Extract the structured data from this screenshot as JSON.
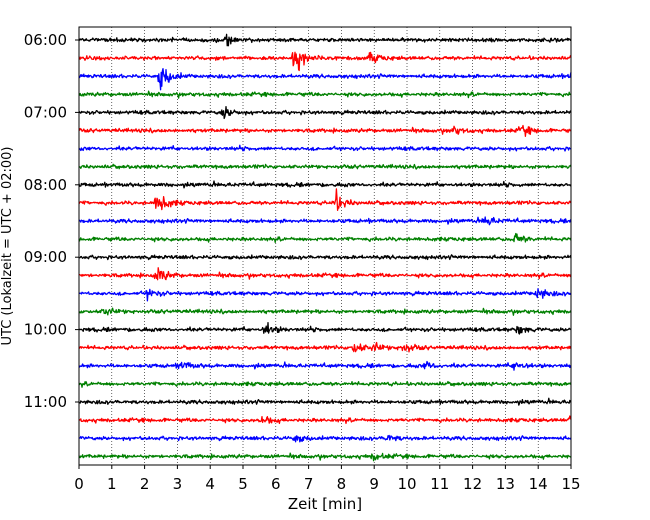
{
  "chart_data": {
    "type": "line",
    "subtype": "helicorder-seismogram",
    "title": "",
    "xlabel": "Zeit  [min]",
    "ylabel": "UTC (Lokalzeit = UTC + 02:00)",
    "xlim": [
      0,
      15
    ],
    "x_ticks": [
      "0",
      "1",
      "2",
      "3",
      "4",
      "5",
      "6",
      "7",
      "8",
      "9",
      "10",
      "11",
      "12",
      "13",
      "14",
      "15"
    ],
    "y_tick_labels": [
      "06:00",
      "07:00",
      "08:00",
      "09:00",
      "10:00",
      "11:00"
    ],
    "grid": "vertical dotted at each minute",
    "trace_colors": [
      "#000000",
      "#ff0000",
      "#0000ff",
      "#008000"
    ],
    "traces": [
      {
        "start": "06:00",
        "color": "#000000",
        "events": [
          {
            "t": 4.5,
            "amp": 0.35
          }
        ]
      },
      {
        "start": "06:15",
        "color": "#ff0000",
        "events": [
          {
            "t": 6.6,
            "amp": 0.9
          },
          {
            "t": 8.9,
            "amp": 0.3
          }
        ]
      },
      {
        "start": "06:30",
        "color": "#0000ff",
        "events": [
          {
            "t": 2.5,
            "amp": 1.0
          },
          {
            "t": 15.0,
            "amp": 0.3
          }
        ]
      },
      {
        "start": "06:45",
        "color": "#008000",
        "events": []
      },
      {
        "start": "07:00",
        "color": "#000000",
        "events": [
          {
            "t": 4.4,
            "amp": 0.4
          }
        ]
      },
      {
        "start": "07:15",
        "color": "#ff0000",
        "events": [
          {
            "t": 11.4,
            "amp": 0.25
          },
          {
            "t": 13.5,
            "amp": 0.3
          }
        ]
      },
      {
        "start": "07:30",
        "color": "#0000ff",
        "events": []
      },
      {
        "start": "07:45",
        "color": "#008000",
        "events": []
      },
      {
        "start": "08:00",
        "color": "#000000",
        "events": []
      },
      {
        "start": "08:15",
        "color": "#ff0000",
        "events": [
          {
            "t": 2.4,
            "amp": 0.8
          },
          {
            "t": 7.8,
            "amp": 0.7
          }
        ]
      },
      {
        "start": "08:30",
        "color": "#0000ff",
        "events": [
          {
            "t": 12.4,
            "amp": 0.3
          }
        ]
      },
      {
        "start": "08:45",
        "color": "#008000",
        "events": [
          {
            "t": 13.3,
            "amp": 0.35
          }
        ]
      },
      {
        "start": "09:00",
        "color": "#000000",
        "events": []
      },
      {
        "start": "09:15",
        "color": "#ff0000",
        "events": [
          {
            "t": 2.4,
            "amp": 0.5
          }
        ]
      },
      {
        "start": "09:30",
        "color": "#0000ff",
        "events": [
          {
            "t": 2.1,
            "amp": 0.35
          },
          {
            "t": 14.0,
            "amp": 0.4
          }
        ]
      },
      {
        "start": "09:45",
        "color": "#008000",
        "events": [
          {
            "t": 0.8,
            "amp": 0.3
          }
        ]
      },
      {
        "start": "10:00",
        "color": "#000000",
        "events": [
          {
            "t": 5.7,
            "amp": 0.45
          },
          {
            "t": 13.4,
            "amp": 0.3
          }
        ]
      },
      {
        "start": "10:15",
        "color": "#ff0000",
        "events": [
          {
            "t": 8.4,
            "amp": 0.4
          },
          {
            "t": 9.0,
            "amp": 0.3
          },
          {
            "t": 9.9,
            "amp": 0.35
          }
        ]
      },
      {
        "start": "10:30",
        "color": "#0000ff",
        "events": [
          {
            "t": 3.1,
            "amp": 0.3
          },
          {
            "t": 10.6,
            "amp": 0.3
          },
          {
            "t": 13.3,
            "amp": 0.35
          }
        ]
      },
      {
        "start": "10:45",
        "color": "#008000",
        "events": []
      },
      {
        "start": "11:00",
        "color": "#000000",
        "events": []
      },
      {
        "start": "11:15",
        "color": "#ff0000",
        "events": [
          {
            "t": 5.6,
            "amp": 0.3
          },
          {
            "t": 15.0,
            "amp": 0.25
          }
        ]
      },
      {
        "start": "11:30",
        "color": "#0000ff",
        "events": [
          {
            "t": 6.6,
            "amp": 0.3
          },
          {
            "t": 9.4,
            "amp": 0.25
          }
        ]
      },
      {
        "start": "11:45",
        "color": "#008000",
        "events": [
          {
            "t": 9.0,
            "amp": 0.25
          }
        ]
      }
    ]
  }
}
